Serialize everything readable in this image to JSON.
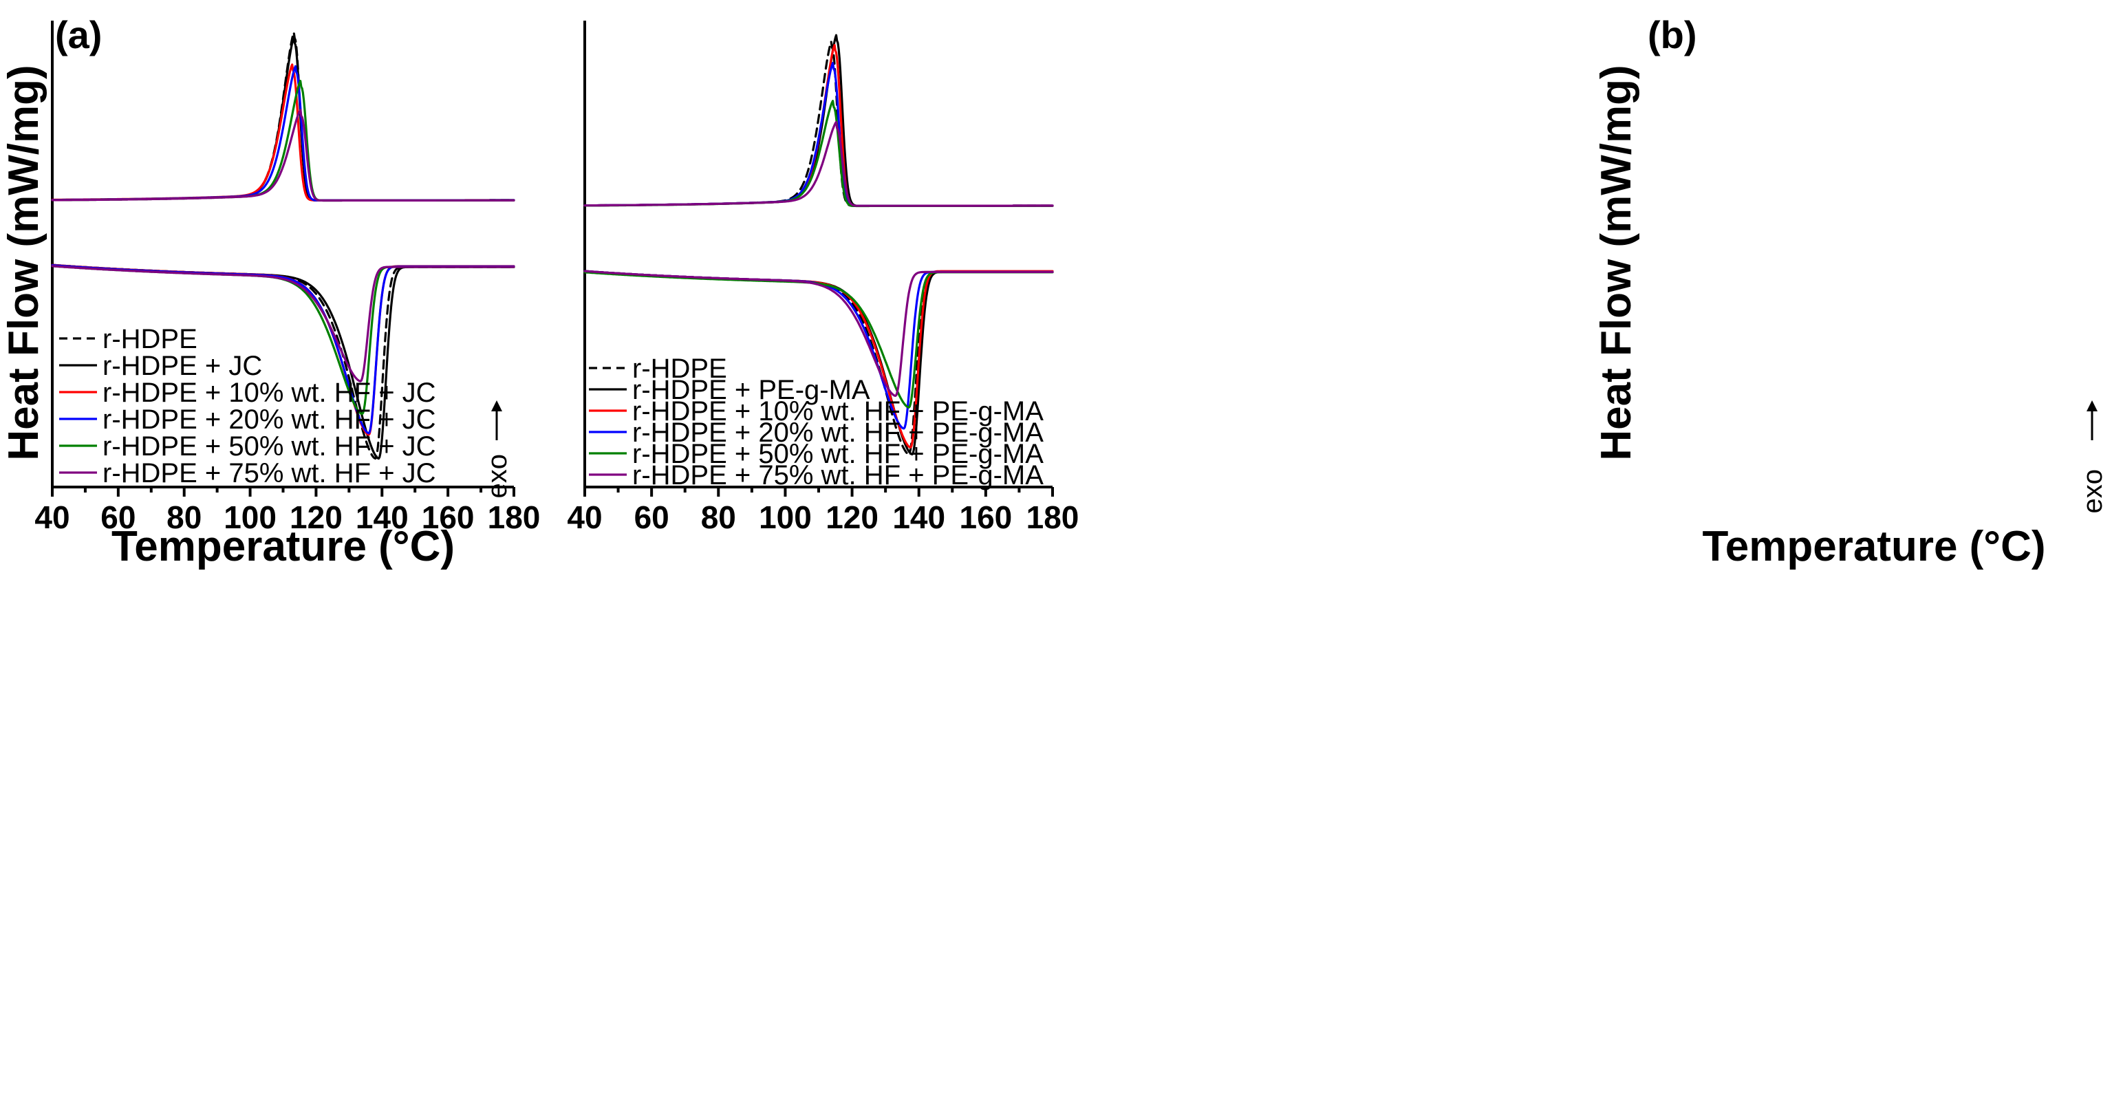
{
  "chart_data": [
    {
      "type": "line",
      "panel_label": "(a)",
      "xlabel": "Temperature (°C)",
      "ylabel": "Heat Flow (mW/mg)",
      "xlim": [
        40,
        180
      ],
      "xticks": [
        "40",
        "60",
        "80",
        "100",
        "120",
        "140",
        "160",
        "180"
      ],
      "yticks_shown": false,
      "exo_label": "exo",
      "legend_position": "bottom-left",
      "series": [
        {
          "name": "r-HDPE",
          "color": "#000000",
          "dash": true,
          "cool_peak_T": 113.5,
          "cool_peak_h": 1.0,
          "cool_base_start": 0.02,
          "cool_base_end": 0.04,
          "heat_min_T": 138,
          "heat_min_depth": 1.0,
          "heat_base_start": 0.48,
          "heat_base_end": 0.53
        },
        {
          "name": "r-HDPE + JC",
          "color": "#000000",
          "dash": false,
          "cool_peak_T": 113.5,
          "cool_peak_h": 0.97,
          "cool_base_start": 0.02,
          "cool_base_end": 0.04,
          "heat_min_T": 139,
          "heat_min_depth": 1.0,
          "heat_base_start": 0.48,
          "heat_base_end": 0.53
        },
        {
          "name": "r-HDPE + 10% wt. HF + JC",
          "color": "#ff0000",
          "dash": false,
          "cool_peak_T": 113,
          "cool_peak_h": 0.8,
          "cool_base_start": 0.03,
          "cool_base_end": 0.04,
          "heat_min_T": 136,
          "heat_min_depth": 0.87,
          "heat_base_start": 0.48,
          "heat_base_end": 0.51
        },
        {
          "name": "r-HDPE + 20% wt. HF + JC",
          "color": "#0000ff",
          "dash": false,
          "cool_peak_T": 114,
          "cool_peak_h": 0.79,
          "cool_base_start": 0.02,
          "cool_base_end": 0.04,
          "heat_min_T": 136,
          "heat_min_depth": 0.86,
          "heat_base_start": 0.49,
          "heat_base_end": 0.52
        },
        {
          "name": "r-HDPE + 50% wt. HF + JC",
          "color": "#008000",
          "dash": false,
          "cool_peak_T": 115.5,
          "cool_peak_h": 0.7,
          "cool_base_start": 0.01,
          "cool_base_end": 0.03,
          "heat_min_T": 134,
          "heat_min_depth": 0.75,
          "heat_base_start": 0.52,
          "heat_base_end": 0.54
        },
        {
          "name": "r-HDPE + 75% wt. HF + JC",
          "color": "#800080",
          "dash": false,
          "cool_peak_T": 115.5,
          "cool_peak_h": 0.52,
          "cool_base_start": 0.01,
          "cool_base_end": 0.03,
          "heat_min_T": 133.5,
          "heat_min_depth": 0.57,
          "heat_base_start": 0.52,
          "heat_base_end": 0.54
        }
      ]
    },
    {
      "type": "line",
      "panel_label": "(b)",
      "xlabel": "Temperature (°C)",
      "ylabel": "Heat Flow (mW/mg)",
      "xlim": [
        40,
        180
      ],
      "xticks": [
        "40",
        "60",
        "80",
        "100",
        "120",
        "140",
        "160",
        "180"
      ],
      "yticks_shown": false,
      "exo_label": "exo",
      "legend_position": "bottom-left",
      "series": [
        {
          "name": "r-HDPE",
          "color": "#000000",
          "dash": true,
          "cool_peak_T": 114,
          "cool_peak_h": 0.96,
          "cool_base_start": 0.02,
          "cool_base_end": 0.04,
          "heat_min_T": 137,
          "heat_min_depth": 1.0,
          "heat_base_start": 0.48,
          "heat_base_end": 0.5
        },
        {
          "name": "r-HDPE + PE-g-MA",
          "color": "#000000",
          "dash": false,
          "cool_peak_T": 115.5,
          "cool_peak_h": 1.0,
          "cool_base_start": 0.02,
          "cool_base_end": 0.04,
          "heat_min_T": 138,
          "heat_min_depth": 1.0,
          "heat_base_start": 0.48,
          "heat_base_end": 0.5
        },
        {
          "name": "r-HDPE + 10% wt. HF + PE-g-MA",
          "color": "#ff0000",
          "dash": false,
          "cool_peak_T": 115,
          "cool_peak_h": 0.94,
          "cool_base_start": 0.02,
          "cool_base_end": 0.04,
          "heat_min_T": 137.5,
          "heat_min_depth": 0.96,
          "heat_base_start": 0.48,
          "heat_base_end": 0.48
        },
        {
          "name": "r-HDPE + 20% wt. HF + PE-g-MA",
          "color": "#0000ff",
          "dash": false,
          "cool_peak_T": 114.5,
          "cool_peak_h": 0.83,
          "cool_base_start": 0.02,
          "cool_base_end": 0.04,
          "heat_min_T": 135.5,
          "heat_min_depth": 0.85,
          "heat_base_start": 0.48,
          "heat_base_end": 0.5
        },
        {
          "name": "r-HDPE + 50% wt. HF + PE-g-MA",
          "color": "#008000",
          "dash": false,
          "cool_peak_T": 114.5,
          "cool_peak_h": 0.6,
          "cool_base_start": 0.01,
          "cool_base_end": 0.03,
          "heat_min_T": 137,
          "heat_min_depth": 0.72,
          "heat_base_start": 0.52,
          "heat_base_end": 0.52
        },
        {
          "name": "r-HDPE + 75% wt. HF + PE-g-MA",
          "color": "#800080",
          "dash": false,
          "cool_peak_T": 115.5,
          "cool_peak_h": 0.47,
          "cool_base_start": 0.02,
          "cool_base_end": 0.04,
          "heat_min_T": 133,
          "heat_min_depth": 0.66,
          "heat_base_start": 0.48,
          "heat_base_end": 0.5
        }
      ]
    }
  ]
}
